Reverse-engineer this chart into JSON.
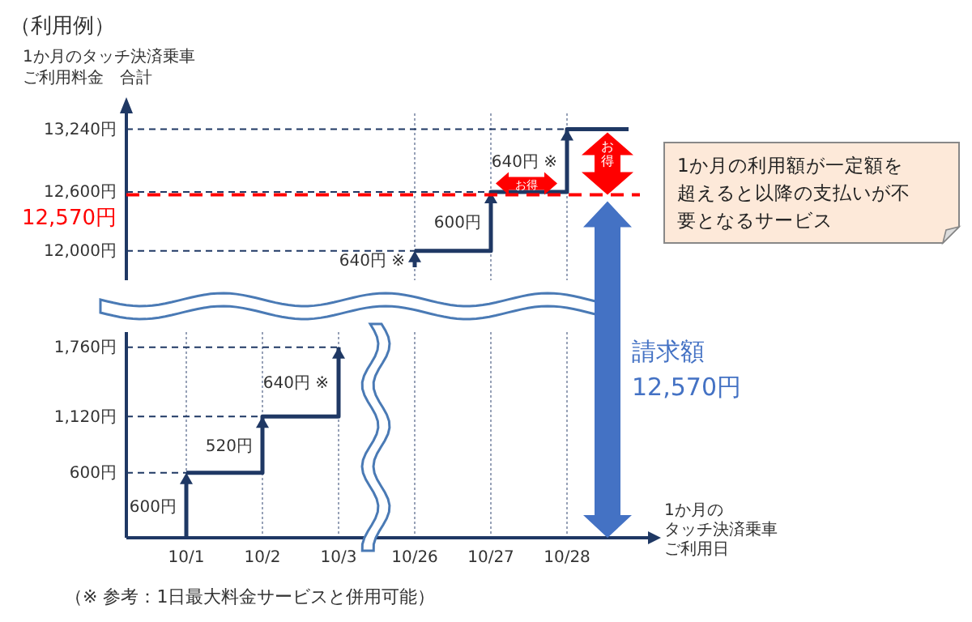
{
  "chart_data": [
    {
      "type": "step",
      "title": "（利用例）",
      "ylabel": "1か月のタッチ決済乗車ご利用料金　合計",
      "categories": [
        "10/1",
        "10/2",
        "10/3",
        "10/26",
        "10/27",
        "10/28"
      ],
      "series": [
        {
          "color": "#1f3864",
          "values": [
            null,
            null,
            null,
            12000,
            12600,
            13240
          ]
        }
      ],
      "ylim": [
        11700,
        13400
      ],
      "yticks": [
        {
          "value": 12000,
          "label": "12,000円"
        },
        {
          "value": 12600,
          "label": "12,600円"
        },
        {
          "value": 13240,
          "label": "13,240円"
        }
      ],
      "tick_labels": "y",
      "grid": true,
      "ref_lines": [
        {
          "axis": "y",
          "value": 12570,
          "label": "12,570円",
          "color": "#ff0000",
          "line_style": "dashed"
        }
      ],
      "annotations": [
        {
          "text": "640円 ※",
          "x": "10/26",
          "y": 12000
        },
        {
          "text": "600円",
          "x": "10/27",
          "y": 12600
        },
        {
          "text": "640円 ※",
          "x": "10/28",
          "y": 13240
        },
        "お得",
        "お得",
        "1か月の利用額が一定額を超えると以降の支払いが不要となるサービス"
      ]
    },
    {
      "type": "step",
      "xlabel": "1か月のタッチ決済乗車ご利用日",
      "categories": [
        "10/1",
        "10/2",
        "10/3",
        "10/26",
        "10/27",
        "10/28"
      ],
      "series": [
        {
          "color": "#1f3864",
          "values": [
            600,
            1120,
            1760,
            null,
            null,
            null
          ]
        }
      ],
      "ylim": [
        0,
        1900
      ],
      "yticks": [
        {
          "value": 600,
          "label": "600円"
        },
        {
          "value": 1120,
          "label": "1,120円"
        },
        {
          "value": 1760,
          "label": "1,760円"
        }
      ],
      "grid": true,
      "annotations": [
        {
          "text": "600円",
          "x": "10/1",
          "y": 600
        },
        {
          "text": "520円",
          "x": "10/2",
          "y": 1120
        },
        {
          "text": "640円 ※",
          "x": "10/3",
          "y": 1760
        },
        "請求額\n12,570円",
        "（※ 参考：1日最大料金サービスと併用可能）"
      ]
    }
  ]
}
